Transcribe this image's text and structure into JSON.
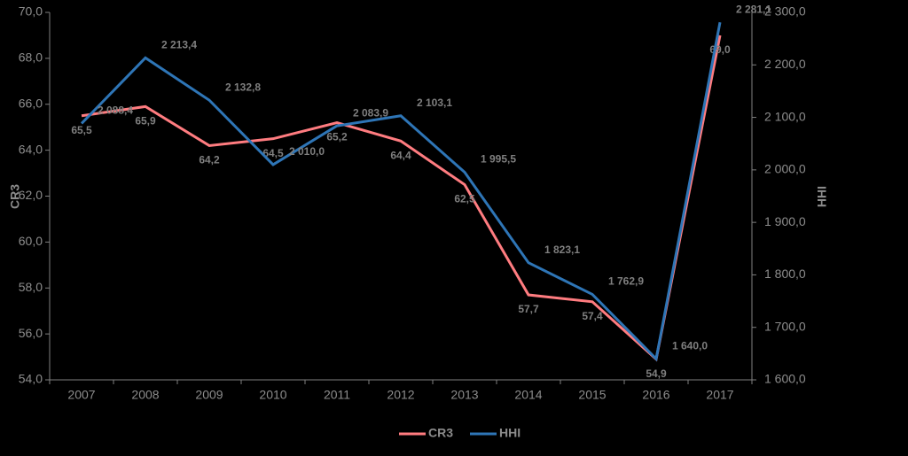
{
  "chart_data": {
    "type": "line",
    "categories": [
      "2007",
      "2008",
      "2009",
      "2010",
      "2011",
      "2012",
      "2013",
      "2014",
      "2015",
      "2016",
      "2017"
    ],
    "series": [
      {
        "name": "CR3",
        "color": "#ff7c80",
        "axis": "y",
        "values": [
          65.5,
          65.9,
          64.2,
          64.5,
          65.2,
          64.4,
          62.5,
          57.7,
          57.4,
          54.9,
          69.0
        ],
        "value_labels": [
          "65,5",
          "65,9",
          "64,2",
          "64,5",
          "65,2",
          "64,4",
          "62,5",
          "57,7",
          "57,4",
          "54,9",
          "69,0"
        ]
      },
      {
        "name": "HHI",
        "color": "#2e75b6",
        "axis": "y2",
        "values": [
          2088.4,
          2213.4,
          2132.8,
          2010.0,
          2083.9,
          2103.1,
          1995.5,
          1823.1,
          1762.9,
          1640.0,
          2281.1
        ],
        "value_labels": [
          "2 088,4",
          "2 213,4",
          "2 132,8",
          "2 010,0",
          "2 083,9",
          "2 103,1",
          "1 995,5",
          "1 823,1",
          "1 762,9",
          "1 640,0",
          "2 281,1"
        ]
      }
    ],
    "ylabel": "CR3",
    "y2label": "HHI",
    "ylim": [
      54,
      70
    ],
    "yticks": [
      {
        "value": 54,
        "label": "54,0"
      },
      {
        "value": 56,
        "label": "56,0"
      },
      {
        "value": 58,
        "label": "58,0"
      },
      {
        "value": 60,
        "label": "60,0"
      },
      {
        "value": 62,
        "label": "62,0"
      },
      {
        "value": 64,
        "label": "64,0"
      },
      {
        "value": 66,
        "label": "66,0"
      },
      {
        "value": 68,
        "label": "68,0"
      },
      {
        "value": 70,
        "label": "70,0"
      }
    ],
    "y2lim": [
      1600,
      2300
    ],
    "y2ticks": [
      {
        "value": 1600,
        "label": "1 600,0"
      },
      {
        "value": 1700,
        "label": "1 700,0"
      },
      {
        "value": 1800,
        "label": "1 800,0"
      },
      {
        "value": 1900,
        "label": "1 900,0"
      },
      {
        "value": 2000,
        "label": "2 000,0"
      },
      {
        "value": 2100,
        "label": "2 100,0"
      },
      {
        "value": 2200,
        "label": "2 200,0"
      },
      {
        "value": 2300,
        "label": "2 300,0"
      }
    ],
    "legend": "bottom"
  }
}
